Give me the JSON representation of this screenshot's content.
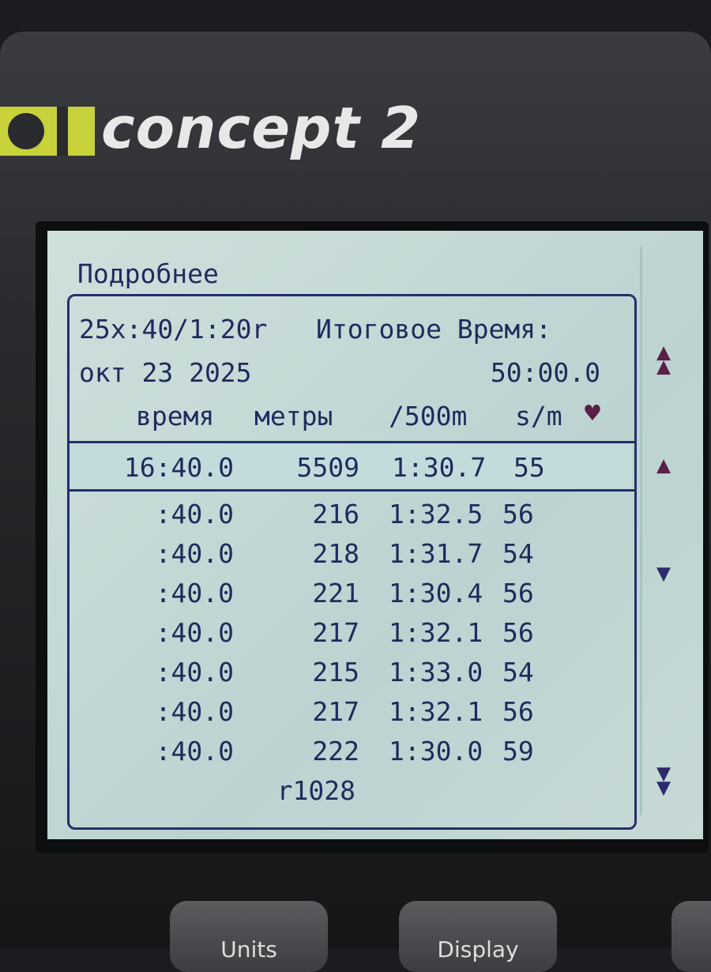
{
  "brand": {
    "logo_text": "concept 2"
  },
  "screen": {
    "title": "Подробнее",
    "workout": "25x:40/1:20r",
    "total_time_label": "Итоговое Время:",
    "date": "окт 23 2025",
    "total_time": "50:00.0",
    "columns": [
      "время",
      "метры",
      "/500m",
      "s/m"
    ],
    "heart_icon": "heart-icon",
    "summary": {
      "time": "16:40.0",
      "meters": "5509",
      "pace": "1:30.7",
      "spm": "55"
    },
    "rows": [
      {
        "time": ":40.0",
        "meters": "216",
        "pace": "1:32.5",
        "spm": "56"
      },
      {
        "time": ":40.0",
        "meters": "218",
        "pace": "1:31.7",
        "spm": "54"
      },
      {
        "time": ":40.0",
        "meters": "221",
        "pace": "1:30.4",
        "spm": "56"
      },
      {
        "time": ":40.0",
        "meters": "217",
        "pace": "1:32.1",
        "spm": "56"
      },
      {
        "time": ":40.0",
        "meters": "215",
        "pace": "1:33.0",
        "spm": "54"
      },
      {
        "time": ":40.0",
        "meters": "217",
        "pace": "1:32.1",
        "spm": "56"
      },
      {
        "time": ":40.0",
        "meters": "222",
        "pace": "1:30.0",
        "spm": "59"
      }
    ],
    "rest_meters": "r1028"
  },
  "buttons": {
    "units": "Units",
    "display": "Display"
  },
  "colors": {
    "lcd_bg": "#c9dcd8",
    "lcd_text": "#1f2a5c",
    "accent": "#5a1f45",
    "logo_yellow": "#c8d23a"
  }
}
